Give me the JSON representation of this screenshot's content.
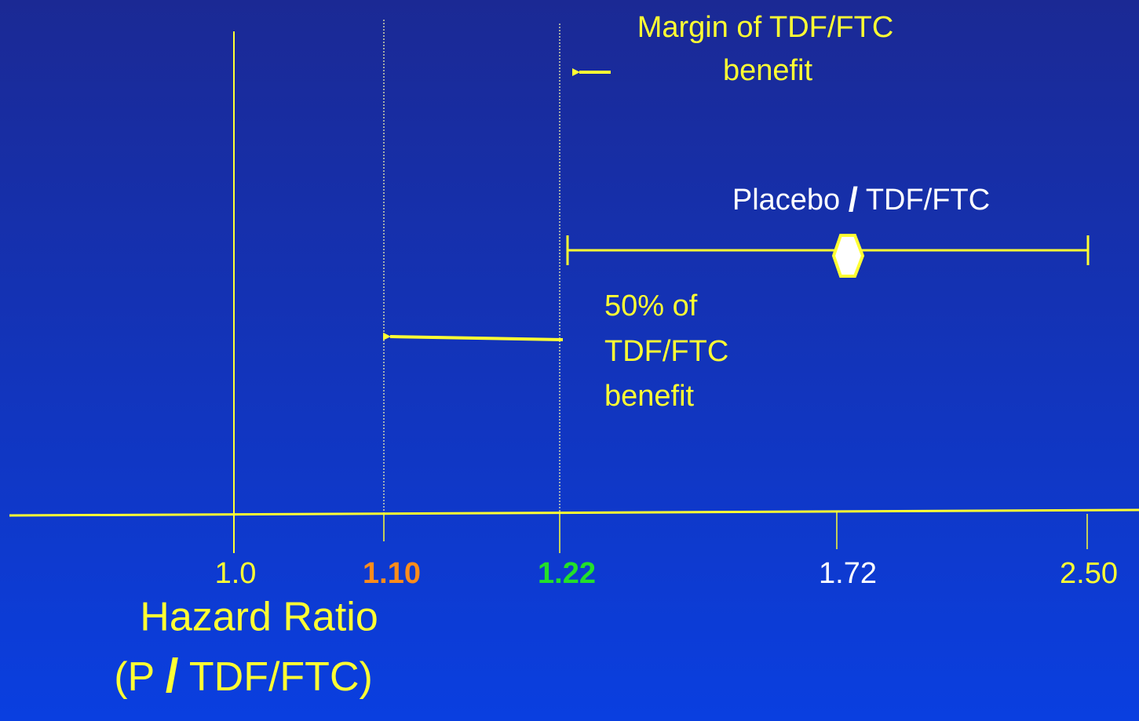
{
  "margin_label": {
    "lines": [
      "Margin of TDF/FTC",
      "benefit"
    ]
  },
  "comparison_label": {
    "parts": [
      "Placebo ",
      "/",
      " TDF/FTC"
    ]
  },
  "half_benefit_label": {
    "lines": [
      "50% of",
      "TDF/FTC",
      "benefit"
    ]
  },
  "axis": {
    "ticks": [
      "1.0",
      "1.10",
      "1.22",
      "1.72",
      "2.50"
    ],
    "title": "Hazard Ratio",
    "subtitle_parts": [
      "(P ",
      "/",
      " TDF/FTC)"
    ]
  }
}
